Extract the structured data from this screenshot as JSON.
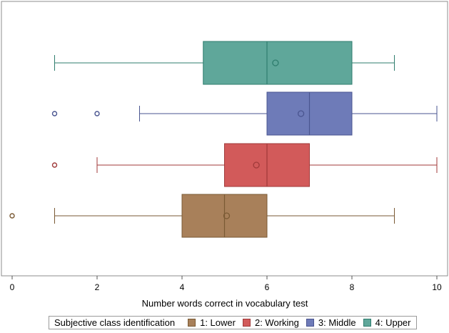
{
  "chart_data": {
    "type": "boxplot",
    "orientation": "horizontal",
    "xlabel": "Number words correct in vocabulary test",
    "xlim": [
      0,
      10
    ],
    "xticks": [
      0,
      2,
      4,
      6,
      8,
      10
    ],
    "grid": false,
    "legend_position": "bottom",
    "legend_title": "Subjective class identification",
    "series": [
      {
        "name": "1: Lower",
        "color": "#a8805a",
        "edge": "#7a5a34",
        "whisker_low": 1,
        "q1": 4,
        "median": 5,
        "q3": 6,
        "whisker_high": 9,
        "mean": 5.05,
        "outliers": [
          0
        ]
      },
      {
        "name": "2: Working",
        "color": "#d25a5a",
        "edge": "#a03a3a",
        "whisker_low": 2,
        "q1": 5,
        "median": 6,
        "q3": 7,
        "whisker_high": 10,
        "mean": 5.75,
        "outliers": [
          1
        ]
      },
      {
        "name": "3: Middle",
        "color": "#6e7bb8",
        "edge": "#4a5590",
        "whisker_low": 3,
        "q1": 6,
        "median": 7,
        "q3": 8,
        "whisker_high": 10,
        "mean": 6.8,
        "outliers": [
          1,
          2
        ]
      },
      {
        "name": "4: Upper",
        "color": "#5fa79a",
        "edge": "#2f7d6e",
        "whisker_low": 1,
        "q1": 4.5,
        "median": 6,
        "q3": 8,
        "whisker_high": 9,
        "mean": 6.2,
        "outliers": []
      }
    ]
  }
}
